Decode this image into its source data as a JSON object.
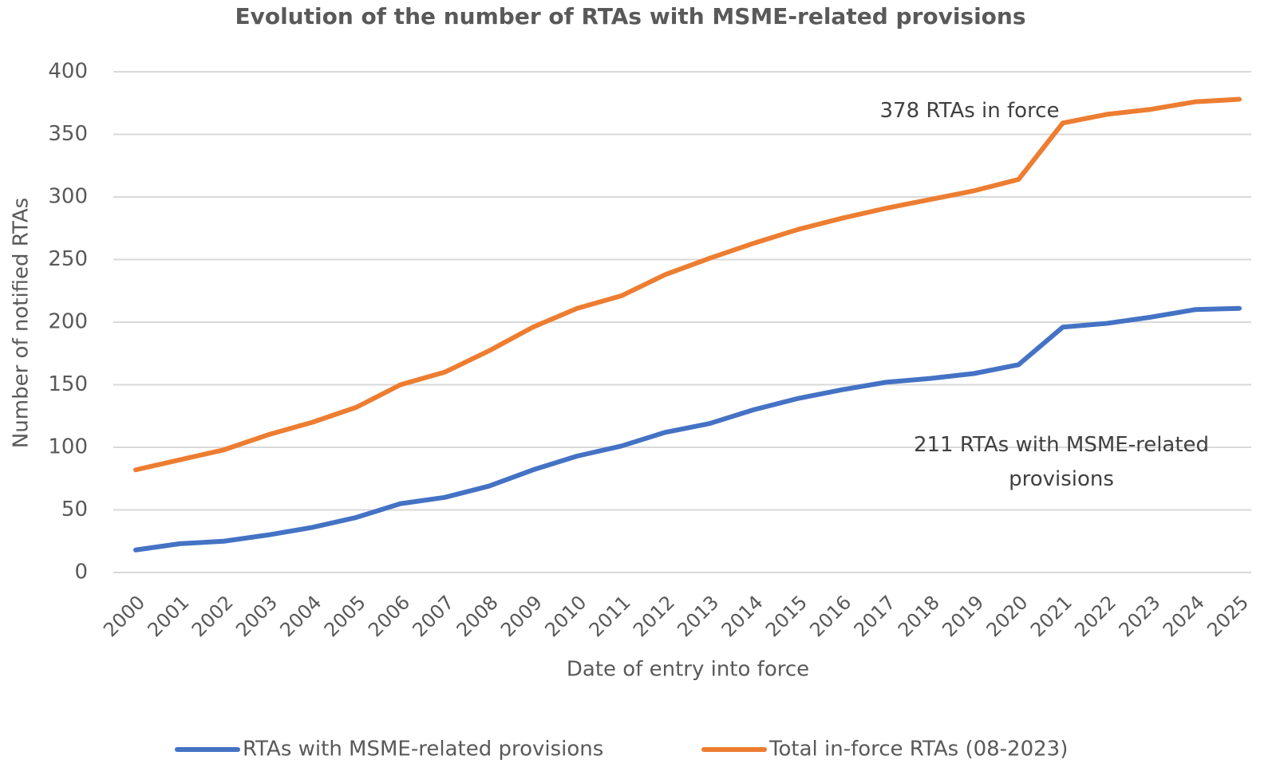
{
  "chart_data": {
    "type": "line",
    "title": "Evolution of the number of RTAs with MSME-related provisions",
    "xlabel": "Date of entry into force",
    "ylabel": "Number of notified  RTAs",
    "categories": [
      "2000",
      "2001",
      "2002",
      "2003",
      "2004",
      "2005",
      "2006",
      "2007",
      "2008",
      "2009",
      "2010",
      "2011",
      "2012",
      "2013",
      "2014",
      "2015",
      "2016",
      "2017",
      "2018",
      "2019",
      "2020",
      "2021",
      "2022",
      "2023",
      "2024",
      "2025"
    ],
    "series": [
      {
        "name": "RTAs with MSME-related provisions",
        "color": "#4472c4",
        "values": [
          18,
          23,
          25,
          30,
          36,
          44,
          55,
          60,
          69,
          82,
          93,
          101,
          112,
          119,
          130,
          139,
          146,
          152,
          155,
          159,
          166,
          196,
          199,
          204,
          210,
          211
        ]
      },
      {
        "name": "Total in-force RTAs (08-2023)",
        "color": "#ed7d31",
        "values": [
          82,
          90,
          98,
          110,
          120,
          132,
          150,
          160,
          177,
          196,
          211,
          221,
          238,
          251,
          263,
          274,
          283,
          291,
          298,
          305,
          314,
          359,
          366,
          370,
          376,
          378
        ]
      }
    ],
    "annotations": [
      {
        "text": "378 RTAs in force"
      },
      {
        "text": "211 RTAs with MSME-related provisions"
      }
    ],
    "ylim": [
      0,
      400
    ],
    "yticks": [
      0,
      50,
      100,
      150,
      200,
      250,
      300,
      350,
      400
    ],
    "grid": true,
    "legend": "bottom"
  }
}
